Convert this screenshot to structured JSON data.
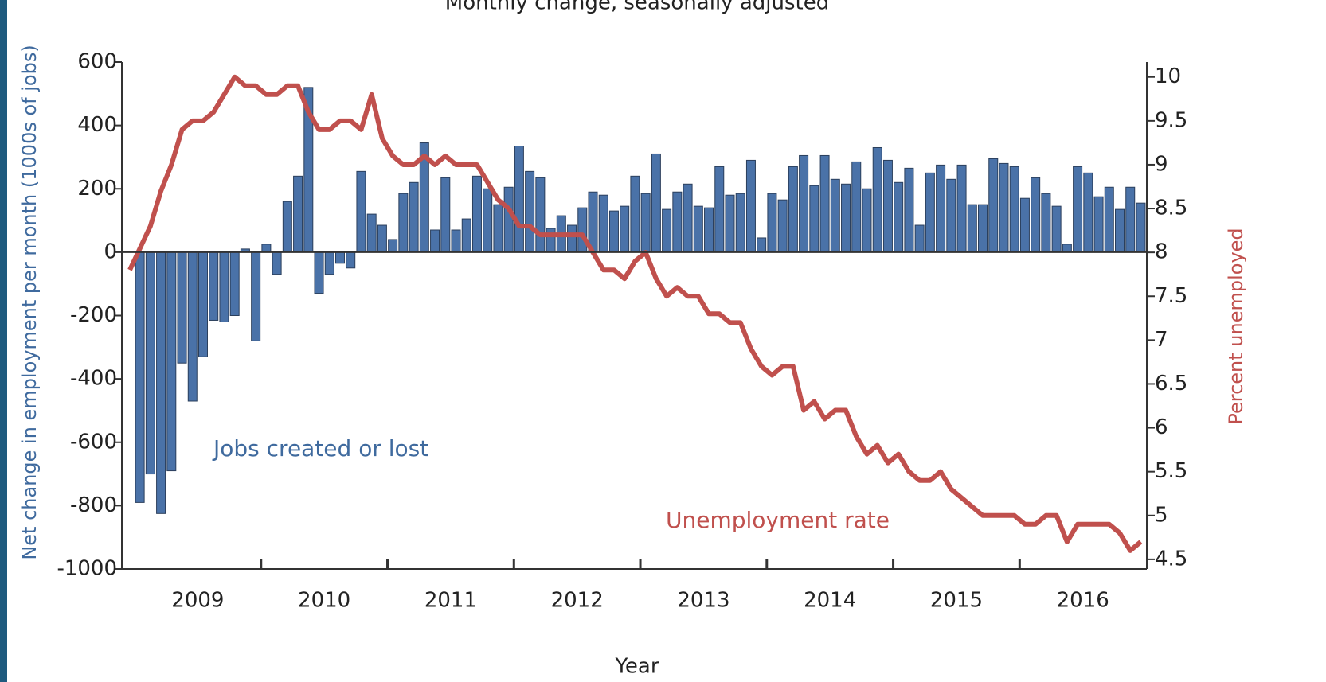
{
  "chart_data": {
    "type": "bar-line",
    "title": "Monthly change, seasonally adjusted",
    "x_label": "Year",
    "y_label": "Net change in employment per month (1000s of jobs)",
    "y2_label": "Percent unemployed",
    "categories": [
      null,
      null,
      null,
      null,
      null,
      null,
      null,
      null,
      null,
      null,
      null,
      null,
      null,
      null,
      null,
      null,
      null,
      null,
      null,
      null,
      null,
      null,
      null,
      null,
      null,
      null,
      null,
      null,
      null,
      null,
      null,
      null,
      null,
      null,
      null,
      null,
      null,
      null,
      null,
      null,
      null,
      null,
      null,
      null,
      null,
      null,
      null,
      null,
      null,
      null,
      null,
      null,
      null,
      null,
      null,
      null,
      null,
      null,
      null,
      null,
      null,
      null,
      null,
      null,
      null,
      null,
      null,
      null,
      null,
      null,
      null,
      null,
      null,
      null,
      null,
      null,
      null,
      null,
      null,
      null,
      null,
      null,
      null,
      null,
      null,
      null,
      null,
      null,
      null,
      null,
      null,
      null,
      null,
      null,
      null,
      null
    ],
    "x_group_labels": [
      "2009",
      "2010",
      "2011",
      "2012",
      "2013",
      "2014",
      "2015",
      "2016"
    ],
    "ylim": [
      -1000,
      600
    ],
    "yticks": [
      -1000,
      -800,
      -600,
      -400,
      -200,
      0,
      200,
      400,
      600
    ],
    "y2lim": [
      4.39,
      10.17
    ],
    "y2ticks": [
      4.5,
      5,
      5.5,
      6,
      6.5,
      7,
      7.5,
      8,
      8.5,
      9,
      9.5,
      10
    ],
    "series": [
      {
        "name": "Jobs created or lost",
        "type": "bar",
        "color": "#4a72a8",
        "values": [
          -790,
          -700,
          -825,
          -690,
          -350,
          -470,
          -330,
          -215,
          -220,
          -200,
          10,
          -280,
          25,
          -70,
          160,
          240,
          520,
          -130,
          -70,
          -35,
          -50,
          255,
          120,
          85,
          40,
          185,
          220,
          345,
          70,
          235,
          70,
          105,
          240,
          200,
          150,
          205,
          335,
          255,
          235,
          75,
          115,
          85,
          140,
          190,
          180,
          130,
          145,
          240,
          185,
          310,
          135,
          190,
          215,
          145,
          140,
          270,
          180,
          185,
          290,
          45,
          185,
          165,
          270,
          305,
          210,
          305,
          230,
          215,
          285,
          200,
          330,
          290,
          220,
          265,
          85,
          250,
          275,
          230,
          275,
          150,
          150,
          295,
          280,
          270,
          170,
          235,
          185,
          145,
          25,
          270,
          250,
          175,
          205,
          135,
          205,
          155
        ]
      },
      {
        "name": "Unemployment rate",
        "type": "line",
        "axis": "y2",
        "color": "#c0504d",
        "values": [
          7.8,
          8.3,
          8.7,
          9.0,
          9.4,
          9.5,
          9.5,
          9.6,
          9.8,
          10.0,
          9.9,
          9.9,
          9.8,
          9.8,
          9.9,
          9.9,
          9.6,
          9.4,
          9.4,
          9.5,
          9.5,
          9.4,
          9.8,
          9.3,
          9.1,
          9.0,
          9.0,
          9.1,
          9.0,
          9.1,
          9.0,
          9.0,
          9.0,
          8.8,
          8.6,
          8.5,
          8.3,
          8.3,
          8.2,
          8.2,
          8.2,
          8.2,
          8.2,
          8.0,
          7.8,
          7.8,
          7.7,
          7.9,
          8.0,
          7.7,
          7.5,
          7.6,
          7.5,
          7.5,
          7.3,
          7.3,
          7.2,
          7.2,
          6.9,
          6.7,
          6.6,
          6.7,
          6.7,
          6.2,
          6.3,
          6.1,
          6.2,
          6.2,
          5.9,
          5.7,
          5.8,
          5.6,
          5.7,
          5.5,
          5.4,
          5.4,
          5.5,
          5.3,
          5.2,
          5.1,
          5.0,
          5.0,
          5.0,
          5.0,
          4.9,
          4.9,
          5.0,
          5.0,
          4.7,
          4.9,
          4.9,
          4.9,
          4.9,
          4.8,
          4.6,
          4.7
        ]
      }
    ]
  }
}
